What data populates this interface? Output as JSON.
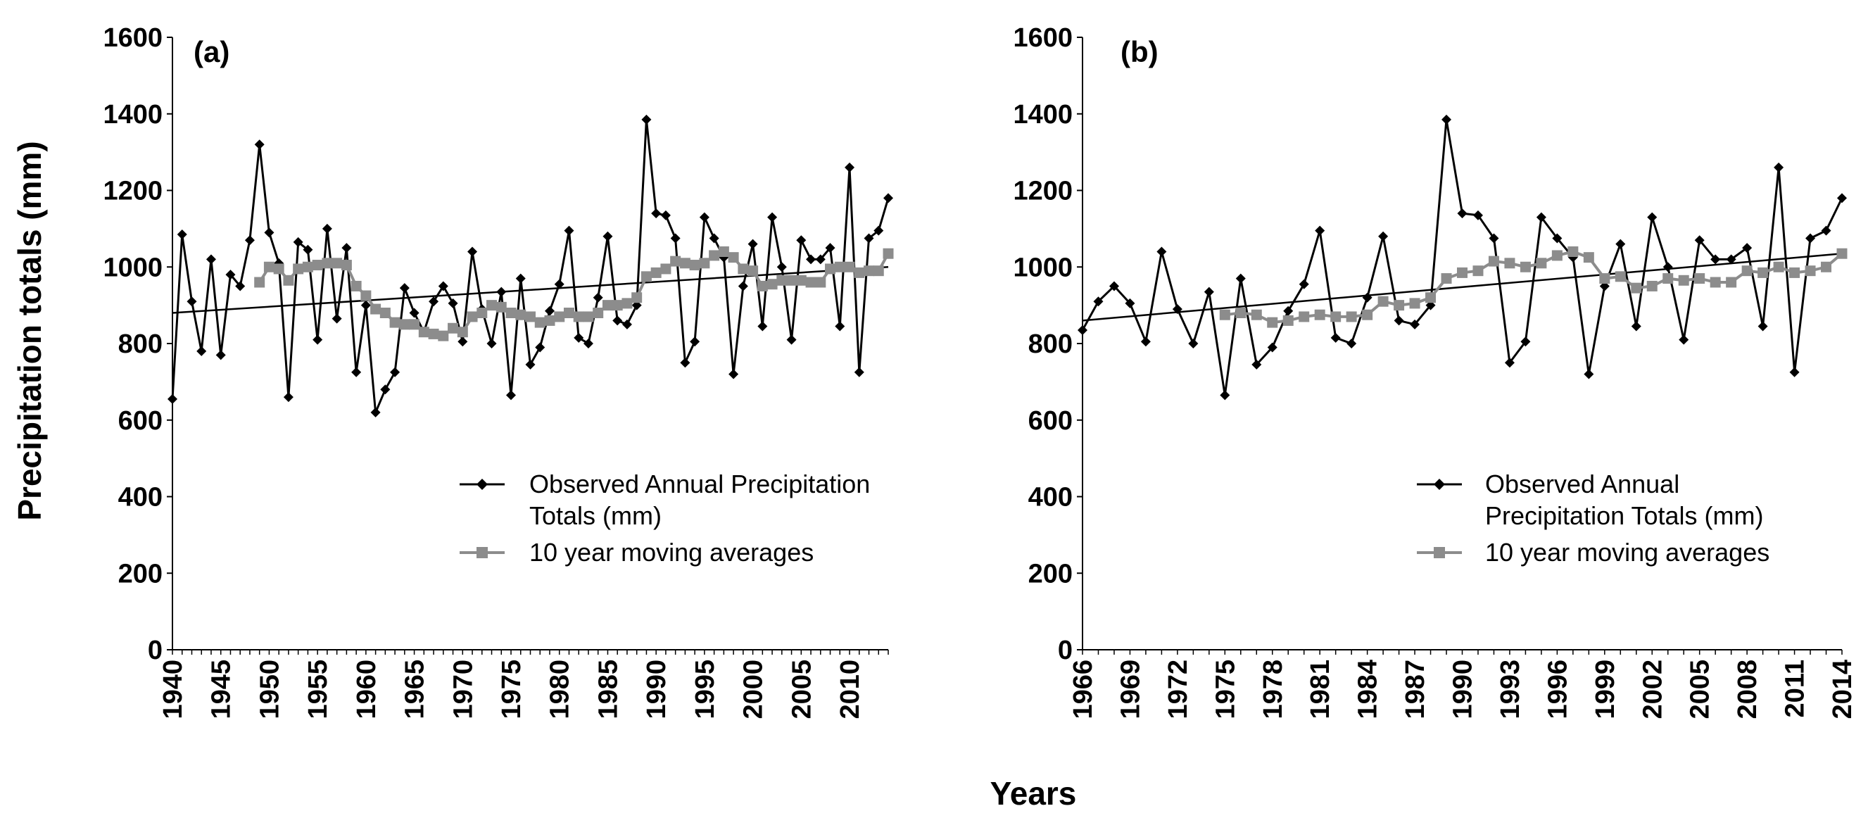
{
  "shared": {
    "ylabel": "Precipitation totals (mm)",
    "xlabel": "Years",
    "legend": {
      "observed_a": [
        "Observed Annual Precipitation",
        "Totals (mm)"
      ],
      "observed_b": [
        "Observed Annual",
        "Precipitation Totals (mm)"
      ],
      "moving": "10 year moving averages"
    },
    "colors": {
      "observed": "#000000",
      "moving": "#8c8c8c",
      "trend": "#000000"
    }
  },
  "chart_data": [
    {
      "panel": "(a)",
      "type": "line",
      "x_start": 1940,
      "x_end": 2014,
      "xticks": [
        "1940",
        "1945",
        "1950",
        "1955",
        "1960",
        "1965",
        "1970",
        "1975",
        "1980",
        "1985",
        "1990",
        "1995",
        "2000",
        "2005",
        "2010"
      ],
      "yticks": [
        "0",
        "200",
        "400",
        "600",
        "800",
        "1000",
        "1200",
        "1400",
        "1600"
      ],
      "ylim": [
        0,
        1600
      ],
      "series": [
        {
          "name": "Observed Annual Precipitation Totals (mm)",
          "values": [
            655,
            1085,
            910,
            780,
            1020,
            770,
            980,
            950,
            1070,
            1320,
            1090,
            1010,
            660,
            1065,
            1045,
            810,
            1100,
            865,
            1050,
            725,
            900,
            620,
            680,
            725,
            945,
            880,
            830,
            910,
            950,
            905,
            805,
            1040,
            890,
            800,
            935,
            665,
            970,
            745,
            790,
            885,
            955,
            1095,
            815,
            800,
            920,
            1080,
            860,
            850,
            900,
            1385,
            1140,
            1135,
            1075,
            750,
            805,
            1130,
            1075,
            1025,
            720,
            950,
            1060,
            845,
            1130,
            1000,
            810,
            1070,
            1020,
            1020,
            1050,
            845,
            1260,
            725,
            1075,
            1095,
            1180
          ]
        },
        {
          "name": "10 year moving averages",
          "values": [
            null,
            null,
            null,
            null,
            null,
            null,
            null,
            null,
            null,
            960,
            1000,
            995,
            965,
            995,
            1000,
            1005,
            1010,
            1010,
            1005,
            950,
            925,
            890,
            880,
            855,
            850,
            850,
            830,
            825,
            820,
            840,
            830,
            870,
            880,
            900,
            895,
            880,
            875,
            870,
            855,
            860,
            870,
            880,
            870,
            870,
            880,
            900,
            900,
            905,
            920,
            975,
            985,
            995,
            1015,
            1010,
            1005,
            1010,
            1030,
            1040,
            1025,
            995,
            990,
            950,
            955,
            965,
            965,
            965,
            960,
            960,
            995,
            1000,
            1000,
            985,
            990,
            990,
            1035
          ]
        }
      ],
      "trend": {
        "start": 880,
        "end": 1000
      }
    },
    {
      "panel": "(b)",
      "type": "line",
      "x_start": 1966,
      "x_end": 2014,
      "xticks": [
        "1966",
        "1969",
        "1972",
        "1975",
        "1978",
        "1981",
        "1984",
        "1987",
        "1990",
        "1993",
        "1996",
        "1999",
        "2002",
        "2005",
        "2008",
        "2011",
        "2014"
      ],
      "yticks": [
        "0",
        "200",
        "400",
        "600",
        "800",
        "1000",
        "1200",
        "1400",
        "1600"
      ],
      "ylim": [
        0,
        1600
      ],
      "series": [
        {
          "name": "Observed Annual Precipitation Totals (mm)",
          "values": [
            835,
            910,
            950,
            905,
            805,
            1040,
            890,
            800,
            935,
            665,
            970,
            745,
            790,
            885,
            955,
            1095,
            815,
            800,
            920,
            1080,
            860,
            850,
            900,
            1385,
            1140,
            1135,
            1075,
            750,
            805,
            1130,
            1075,
            1025,
            720,
            950,
            1060,
            845,
            1130,
            1000,
            810,
            1070,
            1020,
            1020,
            1050,
            845,
            1260,
            725,
            1075,
            1095,
            1180
          ]
        },
        {
          "name": "10 year moving averages",
          "values": [
            null,
            null,
            null,
            null,
            null,
            null,
            null,
            null,
            null,
            875,
            880,
            875,
            855,
            860,
            870,
            875,
            870,
            870,
            875,
            910,
            900,
            905,
            920,
            970,
            985,
            990,
            1015,
            1010,
            1000,
            1010,
            1030,
            1040,
            1025,
            970,
            975,
            945,
            950,
            970,
            965,
            970,
            960,
            960,
            990,
            985,
            1000,
            985,
            990,
            1000,
            1035
          ]
        }
      ],
      "trend": {
        "start": 860,
        "end": 1035
      }
    }
  ]
}
